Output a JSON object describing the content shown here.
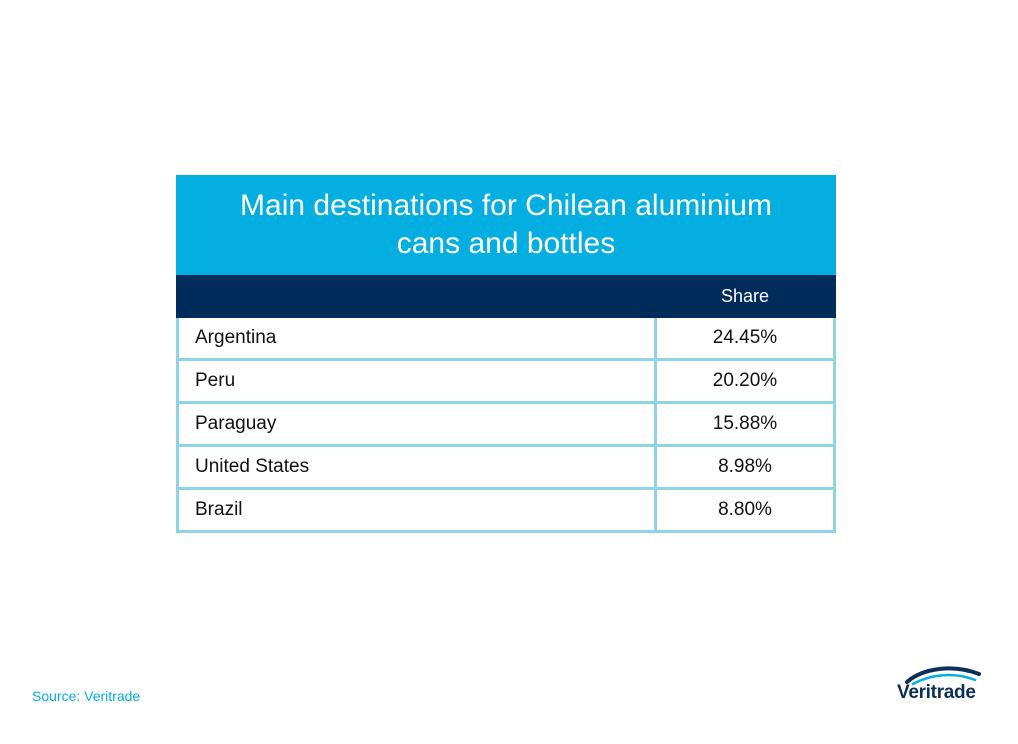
{
  "table": {
    "title": "Main destinations for Chilean aluminium cans and bottles",
    "header_share": "Share",
    "rows": [
      {
        "country": "Argentina",
        "share": "24.45%"
      },
      {
        "country": "Peru",
        "share": "20.20%"
      },
      {
        "country": "Paraguay",
        "share": "15.88%"
      },
      {
        "country": "United States",
        "share": "8.98%"
      },
      {
        "country": "Brazil",
        "share": "8.80%"
      }
    ]
  },
  "chart_data": {
    "type": "table",
    "title": "Main destinations for Chilean aluminium cans and bottles",
    "columns": [
      "",
      "Share"
    ],
    "categories": [
      "Argentina",
      "Peru",
      "Paraguay",
      "United States",
      "Brazil"
    ],
    "series": [
      {
        "name": "Share",
        "values": [
          24.45,
          20.2,
          15.88,
          8.98,
          8.8
        ]
      }
    ]
  },
  "footer": {
    "source": "Source: Veritrade",
    "logo_text": "Veritrade"
  },
  "colors": {
    "title_bg": "#05aee0",
    "header_bg": "#002c5c",
    "grid": "#8fd3e6",
    "source_text": "#05aee0",
    "logo_text": "#0c2f5a"
  }
}
